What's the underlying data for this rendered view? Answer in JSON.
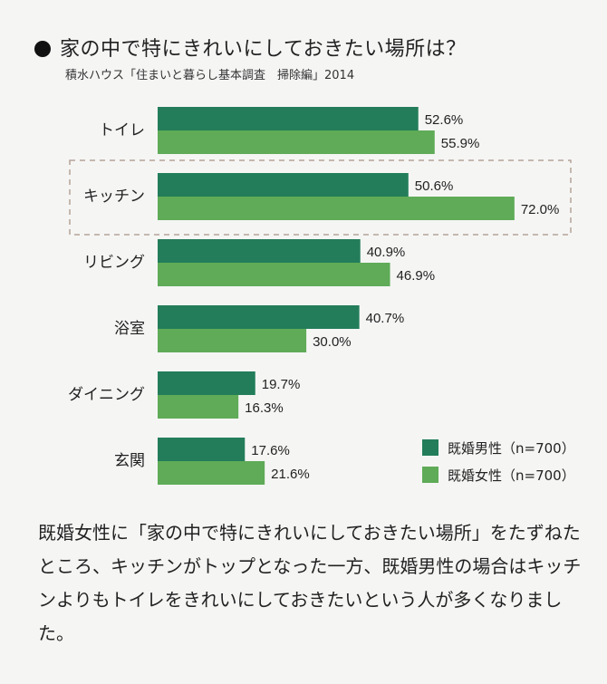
{
  "title": "家の中で特にきれいにしておきたい場所は？",
  "source": "積水ハウス「住まいと暮らし基本調査　掃除編」2014",
  "colors": {
    "male": "#237d5a",
    "female": "#5fab57",
    "highlight": "#b5a396"
  },
  "chart_data": {
    "type": "bar",
    "orientation": "horizontal",
    "categories": [
      "トイレ",
      "キッチン",
      "リビング",
      "浴室",
      "ダイニング",
      "玄関"
    ],
    "series": [
      {
        "name": "既婚男性（n=700）",
        "values": [
          52.6,
          50.6,
          40.9,
          40.7,
          19.7,
          17.6
        ],
        "labels": [
          "52.6%",
          "50.6%",
          "40.9%",
          "40.7%",
          "19.7%",
          "17.6%"
        ]
      },
      {
        "name": "既婚女性（n=700）",
        "values": [
          55.9,
          72.0,
          46.9,
          30.0,
          16.3,
          21.6
        ],
        "labels": [
          "55.9%",
          "72.0%",
          "46.9%",
          "30.0%",
          "16.3%",
          "21.6%"
        ]
      }
    ],
    "highlighted_category": "キッチン",
    "unit": "%",
    "legend": "bottom-right"
  },
  "description": "既婚女性に「家の中で特にきれいにしておきたい場所」をたずねたところ、キッチンがトップとなった一方、既婚男性の場合はキッチンよりもトイレをきれいにしておきたいという人が多くなりました。"
}
